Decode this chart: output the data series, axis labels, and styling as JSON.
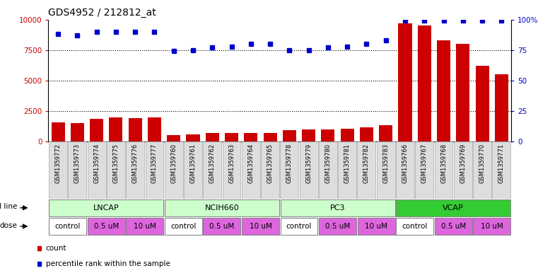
{
  "title": "GDS4952 / 212812_at",
  "samples": [
    "GSM1359772",
    "GSM1359773",
    "GSM1359774",
    "GSM1359775",
    "GSM1359776",
    "GSM1359777",
    "GSM1359760",
    "GSM1359761",
    "GSM1359762",
    "GSM1359763",
    "GSM1359764",
    "GSM1359765",
    "GSM1359778",
    "GSM1359779",
    "GSM1359780",
    "GSM1359781",
    "GSM1359782",
    "GSM1359783",
    "GSM1359766",
    "GSM1359767",
    "GSM1359768",
    "GSM1359769",
    "GSM1359770",
    "GSM1359771"
  ],
  "counts": [
    1600,
    1550,
    1900,
    2000,
    1950,
    2000,
    550,
    600,
    700,
    700,
    700,
    700,
    950,
    1000,
    1000,
    1050,
    1200,
    1350,
    9700,
    9500,
    8300,
    8000,
    6200,
    5500
  ],
  "percentile_ranks": [
    88,
    87,
    90,
    90,
    90,
    90,
    74,
    75,
    77,
    78,
    80,
    80,
    75,
    75,
    77,
    78,
    80,
    83,
    99,
    99,
    99,
    99,
    99,
    99
  ],
  "bar_color": "#cc0000",
  "dot_color": "#0000cc",
  "ylim_left": [
    0,
    10000
  ],
  "ylim_right": [
    0,
    100
  ],
  "yticks_left": [
    0,
    2500,
    5000,
    7500,
    10000
  ],
  "yticks_right": [
    0,
    25,
    50,
    75,
    100
  ],
  "grid_values": [
    2500,
    5000,
    7500
  ],
  "background_color": "#ffffff",
  "title_fontsize": 10,
  "tick_fontsize": 6,
  "label_fontsize": 7.5,
  "cell_groups": [
    {
      "name": "LNCAP",
      "start": 0,
      "end": 6,
      "color": "#ccffcc"
    },
    {
      "name": "NCIH660",
      "start": 6,
      "end": 12,
      "color": "#ccffcc"
    },
    {
      "name": "PC3",
      "start": 12,
      "end": 18,
      "color": "#ccffcc"
    },
    {
      "name": "VCAP",
      "start": 18,
      "end": 24,
      "color": "#33cc33"
    }
  ],
  "dose_groups": [
    {
      "name": "control",
      "start": 0,
      "end": 2,
      "color": "#ffffff"
    },
    {
      "name": "0.5 uM",
      "start": 2,
      "end": 4,
      "color": "#dd66dd"
    },
    {
      "name": "10 uM",
      "start": 4,
      "end": 6,
      "color": "#dd66dd"
    },
    {
      "name": "control",
      "start": 6,
      "end": 8,
      "color": "#ffffff"
    },
    {
      "name": "0.5 uM",
      "start": 8,
      "end": 10,
      "color": "#dd66dd"
    },
    {
      "name": "10 uM",
      "start": 10,
      "end": 12,
      "color": "#dd66dd"
    },
    {
      "name": "control",
      "start": 12,
      "end": 14,
      "color": "#ffffff"
    },
    {
      "name": "0.5 uM",
      "start": 14,
      "end": 16,
      "color": "#dd66dd"
    },
    {
      "name": "10 uM",
      "start": 16,
      "end": 18,
      "color": "#dd66dd"
    },
    {
      "name": "control",
      "start": 18,
      "end": 20,
      "color": "#ffffff"
    },
    {
      "name": "0.5 uM",
      "start": 20,
      "end": 22,
      "color": "#dd66dd"
    },
    {
      "name": "10 uM",
      "start": 22,
      "end": 24,
      "color": "#dd66dd"
    }
  ]
}
